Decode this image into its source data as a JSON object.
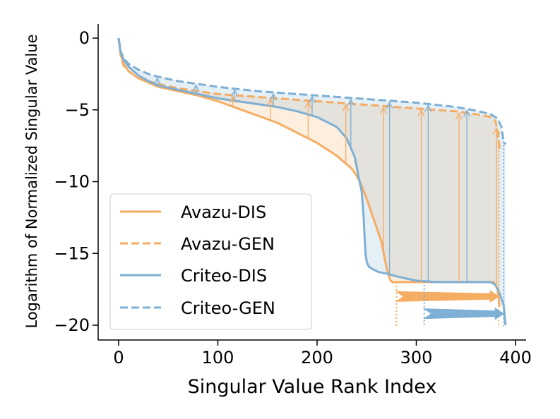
{
  "chart_data": {
    "type": "line",
    "xlabel": "Singular Value Rank Index",
    "ylabel": "Logarithm of Normalized Singular Value",
    "xlim": [
      -10,
      410
    ],
    "ylim": [
      -21,
      0.8
    ],
    "xticks": [
      0,
      100,
      200,
      300,
      400
    ],
    "yticks": [
      0,
      -5,
      -10,
      -15,
      -20
    ],
    "xtick_labels": [
      "0",
      "100",
      "200",
      "300",
      "400"
    ],
    "ytick_labels": [
      "0",
      "−5",
      "−10",
      "−15",
      "−20"
    ],
    "legend_position": "lower-left",
    "series": [
      {
        "name": "Avazu-DIS",
        "color": "#f5ad63",
        "dash": "solid",
        "x": [
          0,
          2,
          5,
          10,
          20,
          30,
          40,
          60,
          80,
          100,
          120,
          140,
          160,
          180,
          200,
          220,
          235,
          240,
          245,
          250,
          255,
          260,
          265,
          268,
          270,
          272,
          274,
          276,
          280,
          300,
          320,
          340,
          360,
          378,
          382,
          384
        ],
        "y": [
          0,
          -1.1,
          -1.8,
          -2.3,
          -2.8,
          -3.1,
          -3.4,
          -3.7,
          -4.0,
          -4.4,
          -4.9,
          -5.4,
          -5.9,
          -6.6,
          -7.3,
          -8.2,
          -9.1,
          -9.6,
          -10.3,
          -11.2,
          -12.2,
          -13.2,
          -14.2,
          -15.3,
          -16.0,
          -16.5,
          -16.9,
          -17.0,
          -17.0,
          -17.0,
          -17.0,
          -17.0,
          -17.0,
          -17.0,
          -17.5,
          -18.7
        ]
      },
      {
        "name": "Avazu-GEN",
        "color": "#f5ad63",
        "dash": "dashed",
        "x": [
          0,
          2,
          5,
          10,
          20,
          30,
          40,
          60,
          80,
          100,
          120,
          140,
          160,
          180,
          200,
          220,
          240,
          260,
          280,
          300,
          320,
          340,
          360,
          375,
          380,
          382,
          384
        ],
        "y": [
          0,
          -1.2,
          -1.9,
          -2.3,
          -2.8,
          -3.0,
          -3.2,
          -3.5,
          -3.7,
          -3.9,
          -4.0,
          -4.1,
          -4.2,
          -4.3,
          -4.4,
          -4.5,
          -4.6,
          -4.7,
          -4.8,
          -4.9,
          -5.0,
          -5.1,
          -5.3,
          -5.5,
          -5.8,
          -6.5,
          -7.7
        ]
      },
      {
        "name": "Criteo-DIS",
        "color": "#7eafd4",
        "dash": "solid",
        "x": [
          0,
          2,
          5,
          10,
          20,
          30,
          40,
          60,
          80,
          100,
          120,
          140,
          160,
          180,
          200,
          220,
          230,
          238,
          242,
          245,
          247,
          248,
          249,
          250,
          252,
          256,
          262,
          270,
          280,
          300,
          320,
          340,
          360,
          375,
          380,
          384,
          388,
          390
        ],
        "y": [
          0,
          -1.0,
          -1.5,
          -2.0,
          -2.6,
          -3.0,
          -3.3,
          -3.6,
          -3.9,
          -4.2,
          -4.4,
          -4.6,
          -4.8,
          -5.1,
          -5.5,
          -6.2,
          -7.0,
          -8.3,
          -9.7,
          -10.7,
          -12.5,
          -14.0,
          -15.1,
          -15.6,
          -15.9,
          -16.1,
          -16.3,
          -16.4,
          -16.6,
          -16.9,
          -17.0,
          -17.0,
          -17.0,
          -17.0,
          -17.2,
          -17.8,
          -18.6,
          -20.0
        ]
      },
      {
        "name": "Criteo-GEN",
        "color": "#7eafd4",
        "dash": "dashed",
        "x": [
          0,
          2,
          5,
          10,
          20,
          30,
          40,
          60,
          80,
          100,
          120,
          140,
          160,
          180,
          200,
          220,
          240,
          260,
          280,
          300,
          320,
          340,
          360,
          375,
          382,
          386,
          388,
          390
        ],
        "y": [
          0,
          -0.9,
          -1.4,
          -1.8,
          -2.2,
          -2.5,
          -2.7,
          -3.0,
          -3.2,
          -3.4,
          -3.55,
          -3.7,
          -3.8,
          -3.9,
          -4.0,
          -4.1,
          -4.2,
          -4.3,
          -4.4,
          -4.5,
          -4.65,
          -4.8,
          -5.05,
          -5.3,
          -5.6,
          -6.2,
          -7.2,
          -7.4
        ]
      }
    ],
    "gain_arrows_avazu": [
      37,
      115,
      153,
      191,
      229,
      267,
      305,
      343,
      381
    ],
    "gain_arrows_criteo": [
      39,
      78,
      117,
      156,
      195,
      234,
      273,
      312,
      351
    ],
    "rank_shift_annotations": [
      {
        "series": "Avazu",
        "from_x": 280,
        "to_x": 383,
        "y": -18.0
      },
      {
        "series": "Criteo",
        "from_x": 308,
        "to_x": 388,
        "y": -19.2
      }
    ]
  }
}
